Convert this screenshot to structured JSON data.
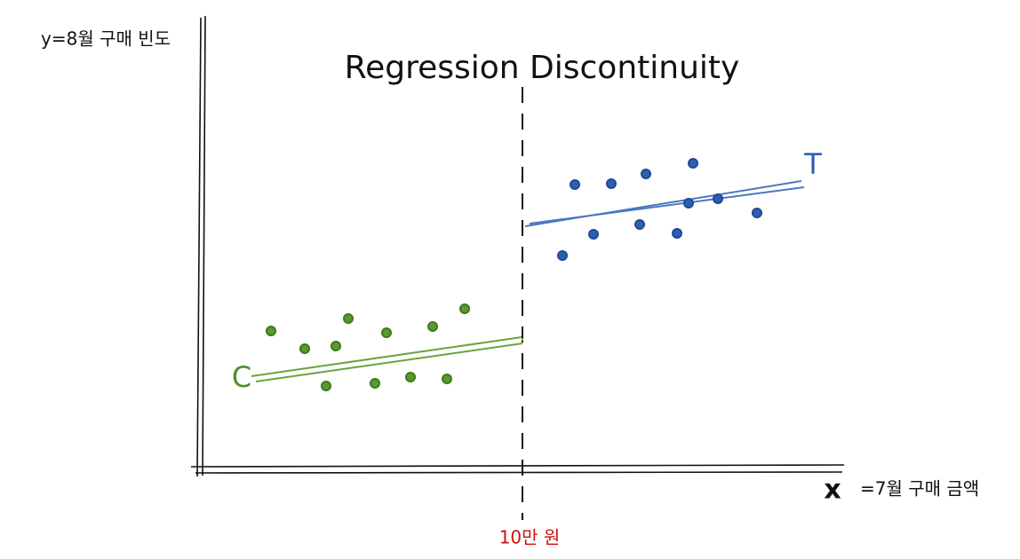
{
  "title": "Regression Discontinuity",
  "y_axis_label": "y=8월 구매 빈도",
  "x_axis": {
    "symbol": "x",
    "label": "=7월 구매 금액"
  },
  "cutoff_label": "10만 원",
  "groups": [
    {
      "label": "C"
    },
    {
      "label": "T"
    }
  ]
}
